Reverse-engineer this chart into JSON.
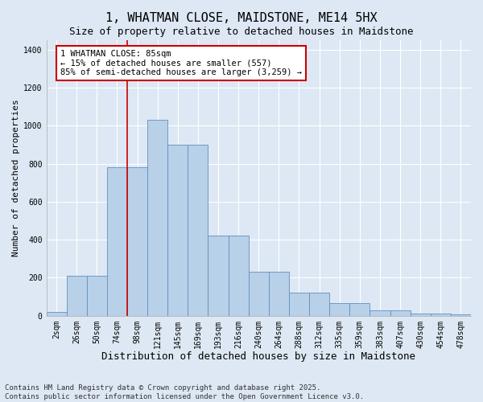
{
  "title": "1, WHATMAN CLOSE, MAIDSTONE, ME14 5HX",
  "subtitle": "Size of property relative to detached houses in Maidstone",
  "xlabel": "Distribution of detached houses by size in Maidstone",
  "ylabel": "Number of detached properties",
  "categories": [
    "2sqm",
    "26sqm",
    "50sqm",
    "74sqm",
    "98sqm",
    "121sqm",
    "145sqm",
    "169sqm",
    "193sqm",
    "216sqm",
    "240sqm",
    "264sqm",
    "288sqm",
    "312sqm",
    "335sqm",
    "359sqm",
    "383sqm",
    "407sqm",
    "430sqm",
    "454sqm",
    "478sqm"
  ],
  "values": [
    20,
    210,
    210,
    780,
    780,
    1030,
    900,
    900,
    420,
    420,
    230,
    230,
    120,
    120,
    65,
    65,
    28,
    28,
    12,
    12,
    8
  ],
  "bar_color": "#b8d0e8",
  "bar_edge_color": "#6090c0",
  "vline_x_index": 3.5,
  "vline_color": "#cc0000",
  "annotation_text": "1 WHATMAN CLOSE: 85sqm\n← 15% of detached houses are smaller (557)\n85% of semi-detached houses are larger (3,259) →",
  "annotation_box_facecolor": "#ffffff",
  "annotation_box_edgecolor": "#cc0000",
  "ylim": [
    0,
    1450
  ],
  "yticks": [
    0,
    200,
    400,
    600,
    800,
    1000,
    1200,
    1400
  ],
  "footnote": "Contains HM Land Registry data © Crown copyright and database right 2025.\nContains public sector information licensed under the Open Government Licence v3.0.",
  "title_fontsize": 11,
  "subtitle_fontsize": 9,
  "xlabel_fontsize": 9,
  "ylabel_fontsize": 8,
  "tick_fontsize": 7,
  "annotation_fontsize": 7.5,
  "footnote_fontsize": 6.5,
  "background_color": "#dde8f4",
  "plot_background_color": "#dde8f4",
  "grid_color": "#ffffff"
}
